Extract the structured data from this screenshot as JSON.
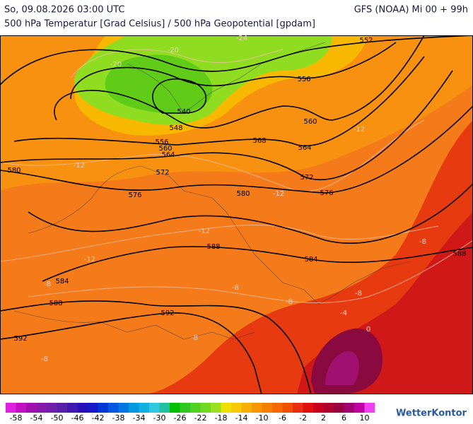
{
  "header": {
    "datetime": "So, 09.08.2026 03:00 UTC",
    "model": "GFS (NOAA) Mi 00 + 99h",
    "subtitle": "500 hPa Temperatur [Grad Celsius] / 500 hPa Geopotential [gpdam]"
  },
  "map": {
    "contour_labels": [
      "552",
      "556",
      "560",
      "564",
      "540",
      "548",
      "556",
      "560",
      "564",
      "568",
      "572",
      "572",
      "576",
      "576",
      "580",
      "580",
      "588",
      "584",
      "584",
      "588",
      "592",
      "592",
      "588"
    ],
    "isotherm_labels": [
      "-24",
      "-20",
      "-20",
      "-12",
      "-12",
      "-12",
      "-12",
      "-12",
      "-8",
      "-8",
      "-8",
      "-8",
      "-4",
      "-8",
      "-8",
      "0",
      "-8"
    ]
  },
  "colorbar": {
    "ticks": [
      -58,
      -54,
      -50,
      -46,
      -42,
      -38,
      -34,
      -30,
      -26,
      -22,
      -18,
      -14,
      -10,
      -6,
      -2,
      2,
      6,
      10
    ],
    "colors": [
      "#e020e0",
      "#c010c0",
      "#a010b0",
      "#8818a8",
      "#7020a8",
      "#5820a8",
      "#4018b0",
      "#2810b8",
      "#1818c8",
      "#0038d8",
      "#0058e0",
      "#0078e0",
      "#0098e0",
      "#10b0e0",
      "#30c8e0",
      "#20c0a0",
      "#00c000",
      "#30c820",
      "#50d020",
      "#70d820",
      "#98e020",
      "#f0e000",
      "#f8c800",
      "#f8b000",
      "#f89800",
      "#f88000",
      "#f86800",
      "#f05000",
      "#e83010",
      "#e01010",
      "#c80020",
      "#b00030",
      "#980040",
      "#a00070",
      "#c000a0",
      "#f040f0"
    ]
  },
  "logo": "WetterKontor"
}
